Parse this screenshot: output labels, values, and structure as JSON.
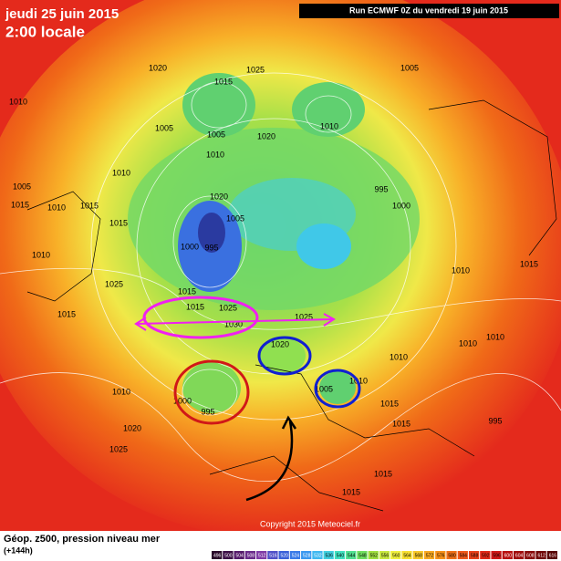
{
  "header": {
    "date": "jeudi 25 juin 2015",
    "time": "2:00 locale",
    "run": "Run ECMWF 0Z du vendredi 19 juin 2015"
  },
  "footer": {
    "title": "Géop. z500, pression niveau mer",
    "lead": "(+144h)",
    "copyright": "Copyright 2015 Meteociel.fr"
  },
  "legend": {
    "labels": [
      496,
      500,
      504,
      508,
      512,
      516,
      520,
      524,
      528,
      532,
      536,
      540,
      544,
      548,
      552,
      556,
      560,
      564,
      568,
      572,
      576,
      580,
      584,
      588,
      592,
      596,
      600,
      604,
      608,
      612,
      616
    ],
    "colors": [
      "#2a0a2a",
      "#3c0f46",
      "#551a6a",
      "#6a2a8a",
      "#7f3aa6",
      "#5050c8",
      "#3a60d8",
      "#3a7ae8",
      "#3a98f0",
      "#40b8f0",
      "#40d0e0",
      "#40e0c0",
      "#50e090",
      "#70e060",
      "#a0e040",
      "#c8e840",
      "#f0f040",
      "#f8e030",
      "#f8c828",
      "#f8a820",
      "#f89018",
      "#f07018",
      "#f05818",
      "#e84018",
      "#e02818",
      "#d01818",
      "#b81010",
      "#a00c0c",
      "#880808",
      "#700606",
      "#580404"
    ]
  },
  "isobars": [
    "1020",
    "1025",
    "1005",
    "1010",
    "1015",
    "1005",
    "1005",
    "1010",
    "1020",
    "1010",
    "1010",
    "1005",
    "995",
    "1000",
    "1005",
    "1000",
    "995",
    "1015",
    "1010",
    "1015",
    "1015",
    "1020",
    "1030",
    "1025",
    "1025",
    "1020",
    "1010",
    "1005",
    "1000",
    "995",
    "1015",
    "1025",
    "1020",
    "1010",
    "1015",
    "1010",
    "1010",
    "1010",
    "1015",
    "1015",
    "995",
    "1015",
    "1010",
    "1015",
    "1010",
    "1025",
    "1015",
    "1015"
  ]
}
